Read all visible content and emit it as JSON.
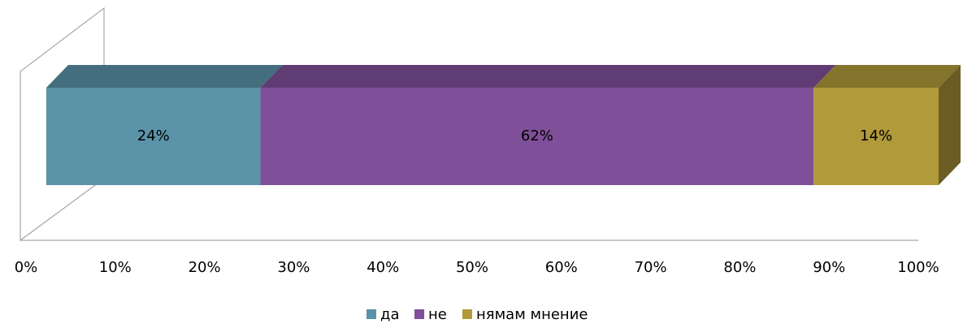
{
  "chart_data": {
    "type": "stacked-bar-3d",
    "categories": [
      null
    ],
    "series": [
      {
        "name": "да",
        "color": "#5b93a8",
        "values": [
          24
        ],
        "value_labels": [
          "24%"
        ]
      },
      {
        "name": "не",
        "color": "#7f5099",
        "values": [
          62
        ],
        "value_labels": [
          "62%"
        ]
      },
      {
        "name": "нямам мнение",
        "color": "#b09a3a",
        "values": [
          14
        ],
        "value_labels": [
          "14%"
        ]
      }
    ],
    "xlim": [
      0,
      100
    ],
    "xticks": [
      {
        "value": 0,
        "label": "0%"
      },
      {
        "value": 10,
        "label": "10%"
      },
      {
        "value": 20,
        "label": "20%"
      },
      {
        "value": 30,
        "label": "30%"
      },
      {
        "value": 40,
        "label": "40%"
      },
      {
        "value": 50,
        "label": "50%"
      },
      {
        "value": 60,
        "label": "60%"
      },
      {
        "value": 70,
        "label": "70%"
      },
      {
        "value": 80,
        "label": "80%"
      },
      {
        "value": 90,
        "label": "90%"
      },
      {
        "value": 100,
        "label": "100%"
      }
    ],
    "legend": "bottom"
  }
}
